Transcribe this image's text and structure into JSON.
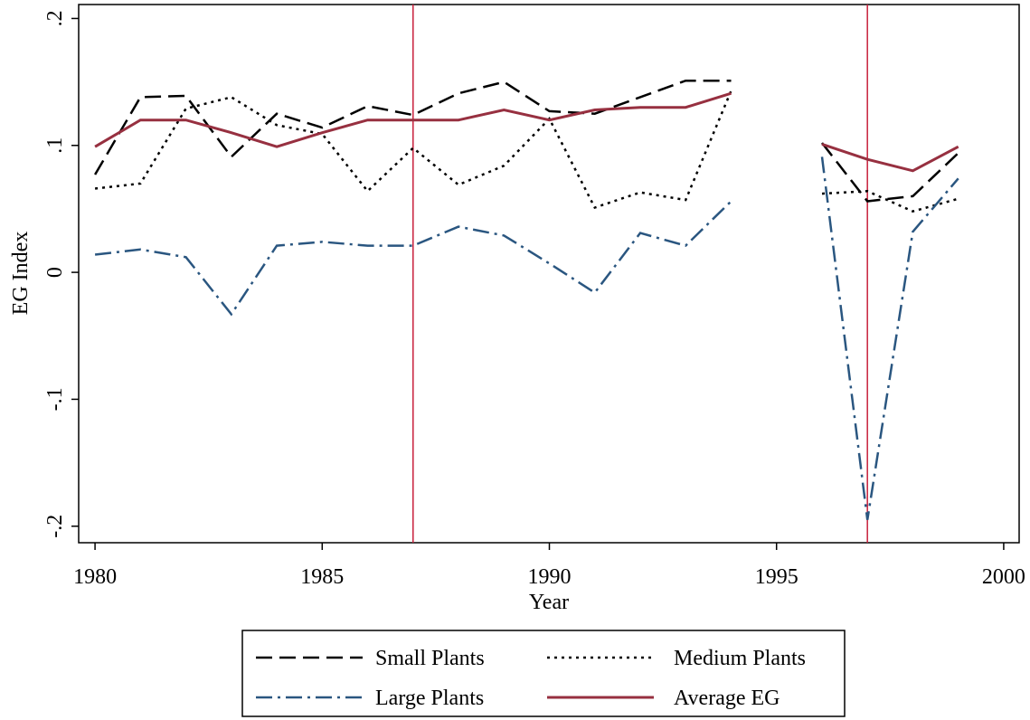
{
  "chart_data": {
    "type": "line",
    "x": [
      1980,
      1981,
      1982,
      1983,
      1984,
      1985,
      1986,
      1987,
      1988,
      1989,
      1990,
      1991,
      1992,
      1993,
      1994,
      1995,
      1996,
      1997,
      1998,
      1999
    ],
    "series": [
      {
        "name": "Small Plants",
        "color": "#000000",
        "dash": "dash",
        "values": [
          0.077,
          0.138,
          0.139,
          0.091,
          0.125,
          0.114,
          0.131,
          0.124,
          0.141,
          0.15,
          0.127,
          0.125,
          0.138,
          0.151,
          0.151,
          null,
          0.102,
          0.056,
          0.06,
          0.094
        ]
      },
      {
        "name": "Medium Plants",
        "color": "#000000",
        "dash": "dot",
        "values": [
          0.066,
          0.07,
          0.129,
          0.138,
          0.116,
          0.109,
          0.064,
          0.098,
          0.069,
          0.084,
          0.121,
          0.051,
          0.063,
          0.057,
          0.143,
          null,
          0.062,
          0.064,
          0.048,
          0.058
        ]
      },
      {
        "name": "Large Plants",
        "color": "#2a5680",
        "dash": "dashdot",
        "values": [
          0.014,
          0.018,
          0.012,
          -0.033,
          0.021,
          0.024,
          0.021,
          0.021,
          0.036,
          0.029,
          0.007,
          -0.016,
          0.031,
          0.021,
          0.056,
          null,
          0.091,
          -0.195,
          0.032,
          0.074
        ]
      },
      {
        "name": "Average EG",
        "color": "#973040",
        "dash": "solid",
        "values": [
          0.099,
          0.12,
          0.12,
          0.11,
          0.099,
          0.11,
          0.12,
          0.12,
          0.12,
          0.128,
          0.12,
          0.128,
          0.13,
          0.13,
          0.141,
          null,
          0.101,
          0.089,
          0.08,
          0.099
        ]
      }
    ],
    "xlabel": "Year",
    "ylabel": "EG Index",
    "xlim": [
      1979.64,
      2000.34
    ],
    "xticks": [
      1980,
      1985,
      1990,
      1995,
      2000
    ],
    "ylim": [
      -0.213,
      0.211
    ],
    "yticks": [
      {
        "value": -0.2,
        "label": "-.2"
      },
      {
        "value": -0.1,
        "label": "-.1"
      },
      0,
      {
        "value": 0.1,
        "label": ".1"
      },
      {
        "value": 0.2,
        "label": ".2"
      }
    ],
    "vlines": [
      1987,
      1997
    ],
    "vline_color": "#c8203c"
  }
}
